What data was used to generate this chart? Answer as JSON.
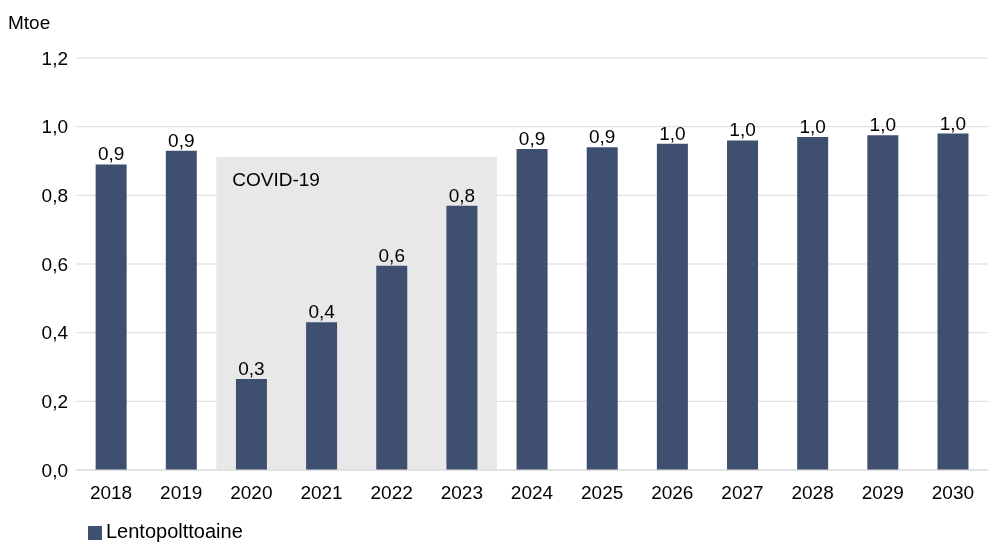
{
  "chart_data": {
    "type": "bar",
    "ylabel": "Mtoe",
    "categories": [
      "2018",
      "2019",
      "2020",
      "2021",
      "2022",
      "2023",
      "2024",
      "2025",
      "2026",
      "2027",
      "2028",
      "2029",
      "2030"
    ],
    "series": [
      {
        "name": "Lentopolttoaine",
        "color": "#3f4f70",
        "values": [
          0.89,
          0.93,
          0.265,
          0.43,
          0.595,
          0.77,
          0.935,
          0.94,
          0.95,
          0.96,
          0.97,
          0.975,
          0.98
        ],
        "value_labels": [
          "0,9",
          "0,9",
          "0,3",
          "0,4",
          "0,6",
          "0,8",
          "0,9",
          "0,9",
          "1,0",
          "1,0",
          "1,0",
          "1,0",
          "1,0"
        ]
      }
    ],
    "ylim": [
      0,
      1.2
    ],
    "yticks": [
      {
        "value": 0,
        "label": "0,0"
      },
      {
        "value": 0.2,
        "label": "0,2"
      },
      {
        "value": 0.4,
        "label": "0,4"
      },
      {
        "value": 0.6,
        "label": "0,6"
      },
      {
        "value": 0.8,
        "label": "0,8"
      },
      {
        "value": 1,
        "label": "1,0"
      },
      {
        "value": 1.2,
        "label": "1,2"
      }
    ],
    "bands": [
      {
        "axis": "x",
        "from": "2020",
        "to": "2023",
        "label": "COVID-19",
        "color": "#e8e8e8"
      }
    ],
    "grid": "y",
    "legend": "bottom left"
  }
}
